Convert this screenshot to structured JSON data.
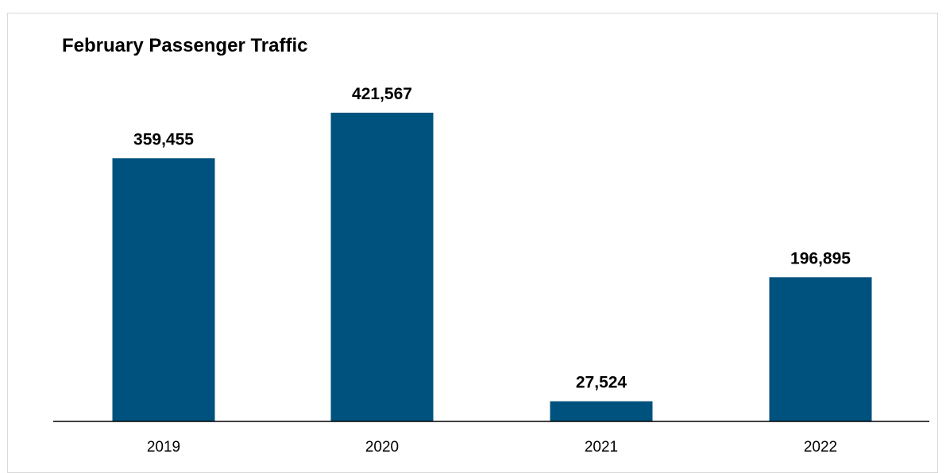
{
  "chart_data": {
    "type": "bar",
    "title": "February Passenger Traffic",
    "categories": [
      "2019",
      "2020",
      "2021",
      "2022"
    ],
    "values": [
      359455,
      421567,
      27524,
      196895
    ],
    "data_labels": [
      "359,455",
      "421,567",
      "27,524",
      "196,895"
    ],
    "xlabel": "",
    "ylabel": "",
    "ylim": [
      0,
      466000
    ],
    "grid": false,
    "legend": "none",
    "bar_color": "#00527e"
  }
}
